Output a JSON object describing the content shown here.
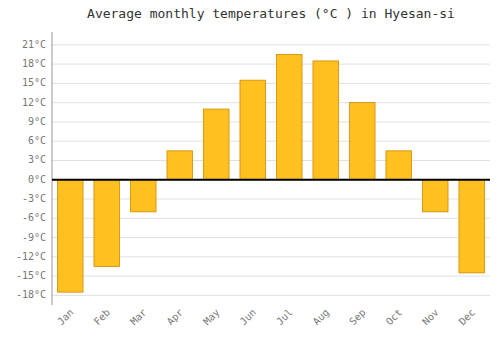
{
  "chart_data": {
    "type": "bar",
    "title": "Average monthly temperatures (°C ) in Hyesan-si",
    "categories": [
      "Jan",
      "Feb",
      "Mar",
      "Apr",
      "May",
      "Jun",
      "Jul",
      "Aug",
      "Sep",
      "Oct",
      "Nov",
      "Dec"
    ],
    "values": [
      -17.5,
      -13.5,
      -5.0,
      4.5,
      11.0,
      15.5,
      19.5,
      18.5,
      12.0,
      4.5,
      -5.0,
      -14.5
    ],
    "color": "#FFC020",
    "ylim": [
      -19.5,
      23.0
    ],
    "yticks": [
      {
        "value": -18,
        "label": "-18°C"
      },
      {
        "value": -15,
        "label": "-15°C"
      },
      {
        "value": -12,
        "label": "-12°C"
      },
      {
        "value": -9,
        "label": "-9°C"
      },
      {
        "value": -6,
        "label": "-6°C"
      },
      {
        "value": -3,
        "label": "-3°C"
      },
      {
        "value": 0,
        "label": "0°C"
      },
      {
        "value": 3,
        "label": "3°C"
      },
      {
        "value": 6,
        "label": "6°C"
      },
      {
        "value": 9,
        "label": "9°C"
      },
      {
        "value": 12,
        "label": "12°C"
      },
      {
        "value": 15,
        "label": "15°C"
      },
      {
        "value": 18,
        "label": "18°C"
      },
      {
        "value": 21,
        "label": "21°C"
      }
    ],
    "grid": true
  }
}
